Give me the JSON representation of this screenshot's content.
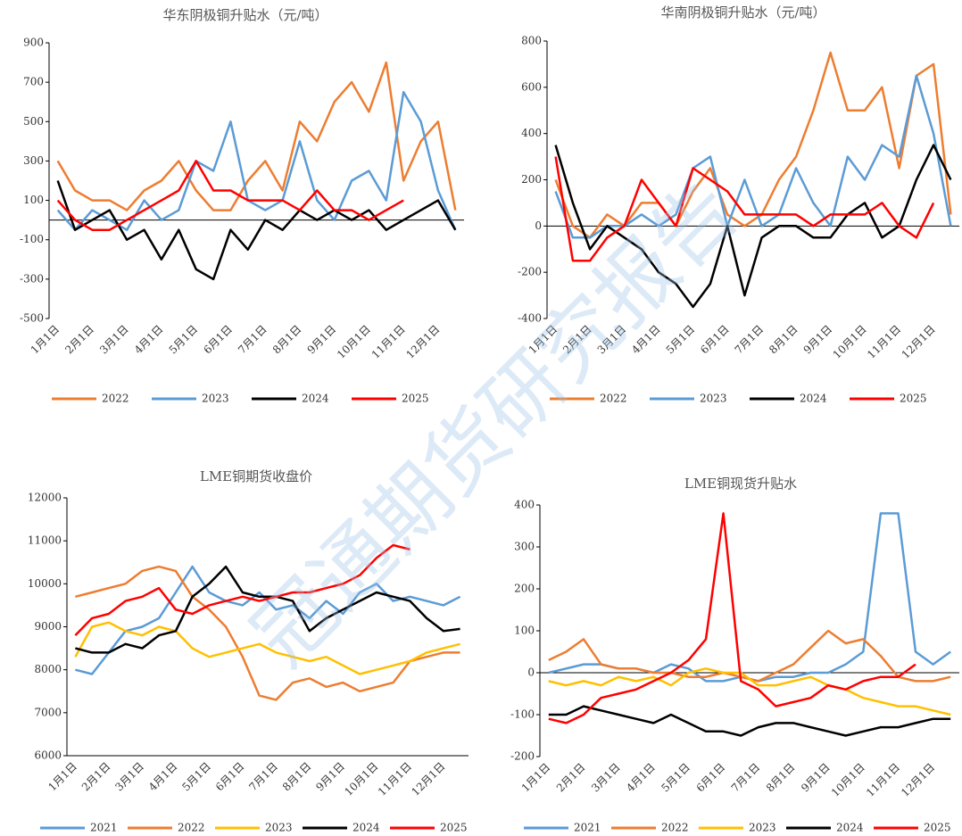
{
  "watermark": "冠通期货研究报告",
  "chart_data": [
    {
      "type": "line",
      "title": "华东阴极铜升贴水（元/吨）",
      "categories": [
        "1月1日",
        null,
        "2月1日",
        null,
        "3月1日",
        null,
        "4月1日",
        null,
        "5月1日",
        null,
        "6月1日",
        null,
        "7月1日",
        null,
        "8月1日",
        null,
        "9月1日",
        null,
        "10月1日",
        null,
        "11月1日",
        null,
        "12月1日",
        null
      ],
      "ylim": [
        -500,
        900
      ],
      "yticks": [
        -500,
        -300,
        -100,
        100,
        300,
        500,
        700,
        900
      ],
      "legend": "bottom",
      "series": [
        {
          "name": "2022",
          "color": "#ed7d31",
          "values": [
            300,
            150,
            100,
            100,
            50,
            150,
            200,
            300,
            150,
            50,
            50,
            200,
            300,
            150,
            500,
            400,
            600,
            700,
            550,
            800,
            200,
            400,
            500,
            50
          ]
        },
        {
          "name": "2023",
          "color": "#5b9bd5",
          "values": [
            50,
            -50,
            50,
            0,
            -50,
            100,
            0,
            50,
            300,
            250,
            500,
            100,
            50,
            100,
            400,
            100,
            0,
            200,
            250,
            100,
            650,
            500,
            150,
            -50
          ]
        },
        {
          "name": "2024",
          "color": "#000000",
          "values": [
            200,
            -50,
            0,
            50,
            -100,
            -50,
            -200,
            -50,
            -250,
            -300,
            -50,
            -150,
            0,
            -50,
            50,
            0,
            50,
            0,
            50,
            -50,
            0,
            50,
            100,
            -50
          ]
        },
        {
          "name": "2025",
          "color": "#ff0000",
          "values": [
            100,
            0,
            -50,
            -50,
            0,
            50,
            100,
            150,
            300,
            150,
            150,
            100,
            100,
            100,
            50,
            150,
            50,
            50,
            0,
            50,
            100,
            null,
            null,
            null
          ]
        }
      ]
    },
    {
      "type": "line",
      "title": "华南阴极铜升贴水（元/吨）",
      "categories": [
        "1月1日",
        null,
        "2月1日",
        null,
        "3月1日",
        null,
        "4月1日",
        null,
        "5月1日",
        null,
        "6月1日",
        null,
        "7月1日",
        null,
        "8月1日",
        null,
        "9月1日",
        null,
        "10月1日",
        null,
        "11月1日",
        null,
        "12月1日",
        null
      ],
      "ylim": [
        -400,
        800
      ],
      "yticks": [
        -400,
        -200,
        0,
        200,
        400,
        600,
        800
      ],
      "legend": "bottom",
      "series": [
        {
          "name": "2022",
          "color": "#ed7d31",
          "values": [
            200,
            0,
            -50,
            50,
            0,
            100,
            100,
            0,
            150,
            250,
            50,
            0,
            50,
            200,
            300,
            500,
            750,
            500,
            500,
            600,
            250,
            650,
            700,
            50
          ]
        },
        {
          "name": "2023",
          "color": "#5b9bd5",
          "values": [
            150,
            -50,
            -50,
            0,
            0,
            50,
            0,
            50,
            250,
            300,
            0,
            200,
            0,
            50,
            250,
            100,
            0,
            300,
            200,
            350,
            300,
            650,
            400,
            0
          ]
        },
        {
          "name": "2024",
          "color": "#000000",
          "values": [
            350,
            100,
            -100,
            0,
            -50,
            -100,
            -200,
            -250,
            -350,
            -250,
            0,
            -300,
            -50,
            0,
            0,
            -50,
            -50,
            50,
            100,
            -50,
            0,
            200,
            350,
            200
          ]
        },
        {
          "name": "2025",
          "color": "#ff0000",
          "values": [
            300,
            -150,
            -150,
            -50,
            0,
            200,
            100,
            0,
            250,
            200,
            150,
            50,
            50,
            50,
            50,
            0,
            50,
            50,
            50,
            100,
            0,
            -50,
            100,
            null
          ]
        }
      ]
    },
    {
      "type": "line",
      "title": "LME铜期货收盘价",
      "categories": [
        "1月1日",
        null,
        "2月1日",
        null,
        "3月1日",
        null,
        "4月1日",
        null,
        "5月1日",
        null,
        "6月1日",
        null,
        "7月1日",
        null,
        "8月1日",
        null,
        "9月1日",
        null,
        "10月1日",
        null,
        "11月1日",
        null,
        "12月1日",
        null
      ],
      "ylim": [
        6000,
        12000
      ],
      "yticks": [
        6000,
        7000,
        8000,
        9000,
        10000,
        11000,
        12000
      ],
      "legend": "bottom",
      "series": [
        {
          "name": "2021",
          "color": "#5b9bd5",
          "values": [
            8000,
            7900,
            8400,
            8900,
            9000,
            9200,
            9800,
            10400,
            9800,
            9600,
            9500,
            9800,
            9400,
            9500,
            9200,
            9600,
            9300,
            9800,
            10000,
            9600,
            9700,
            9600,
            9500,
            9700
          ]
        },
        {
          "name": "2022",
          "color": "#ed7d31",
          "values": [
            9700,
            9800,
            9900,
            10000,
            10300,
            10400,
            10300,
            9700,
            9400,
            9000,
            8300,
            7400,
            7300,
            7700,
            7800,
            7600,
            7700,
            7500,
            7600,
            7700,
            8200,
            8300,
            8400,
            8400
          ]
        },
        {
          "name": "2023",
          "color": "#ffc000",
          "values": [
            8300,
            9000,
            9100,
            8900,
            8800,
            9000,
            8900,
            8500,
            8300,
            8400,
            8500,
            8600,
            8400,
            8300,
            8200,
            8300,
            8100,
            7900,
            8000,
            8100,
            8200,
            8400,
            8500,
            8600
          ]
        },
        {
          "name": "2024",
          "color": "#000000",
          "values": [
            8500,
            8400,
            8400,
            8600,
            8500,
            8800,
            8900,
            9700,
            10000,
            10400,
            9800,
            9700,
            9700,
            9600,
            8900,
            9200,
            9400,
            9600,
            9800,
            9700,
            9600,
            9200,
            8900,
            8950
          ]
        },
        {
          "name": "2025",
          "color": "#ff0000",
          "values": [
            8800,
            9200,
            9300,
            9600,
            9700,
            9900,
            9400,
            9300,
            9500,
            9600,
            9700,
            9600,
            9700,
            9800,
            9800,
            9900,
            10000,
            10200,
            10600,
            10900,
            10800,
            null,
            null,
            null
          ]
        }
      ]
    },
    {
      "type": "line",
      "title": "LME铜现货升贴水",
      "categories": [
        "1月1日",
        null,
        "2月1日",
        null,
        "3月1日",
        null,
        "4月1日",
        null,
        "5月1日",
        null,
        "6月1日",
        null,
        "7月1日",
        null,
        "8月1日",
        null,
        "9月1日",
        null,
        "10月1日",
        null,
        "11月1日",
        null,
        "12月1日",
        null
      ],
      "ylim": [
        -200,
        400
      ],
      "yticks": [
        -200,
        -100,
        0,
        100,
        200,
        300,
        400
      ],
      "legend": "bottom",
      "series": [
        {
          "name": "2021",
          "color": "#5b9bd5",
          "values": [
            0,
            10,
            20,
            20,
            10,
            10,
            0,
            20,
            10,
            -20,
            -20,
            -10,
            -20,
            -10,
            -10,
            0,
            0,
            20,
            50,
            380,
            380,
            50,
            20,
            50
          ]
        },
        {
          "name": "2022",
          "color": "#ed7d31",
          "values": [
            30,
            50,
            80,
            20,
            10,
            10,
            0,
            0,
            -10,
            -10,
            0,
            -10,
            -20,
            0,
            20,
            60,
            100,
            70,
            80,
            40,
            -10,
            -20,
            -20,
            -10
          ]
        },
        {
          "name": "2023",
          "color": "#ffc000",
          "values": [
            -20,
            -30,
            -20,
            -30,
            -10,
            -20,
            -10,
            -30,
            0,
            10,
            0,
            0,
            -30,
            -30,
            -20,
            -10,
            -30,
            -40,
            -60,
            -70,
            -80,
            -80,
            -90,
            -100
          ]
        },
        {
          "name": "2024",
          "color": "#000000",
          "values": [
            -100,
            -100,
            -80,
            -90,
            -100,
            -110,
            -120,
            -100,
            -120,
            -140,
            -140,
            -150,
            -130,
            -120,
            -120,
            -130,
            -140,
            -150,
            -140,
            -130,
            -130,
            -120,
            -110,
            -110
          ]
        },
        {
          "name": "2025",
          "color": "#ff0000",
          "values": [
            -110,
            -120,
            -100,
            -60,
            -50,
            -40,
            -20,
            0,
            30,
            80,
            380,
            -20,
            -40,
            -80,
            -70,
            -60,
            -30,
            -40,
            -20,
            -10,
            -10,
            20,
            null,
            null
          ]
        }
      ]
    }
  ]
}
